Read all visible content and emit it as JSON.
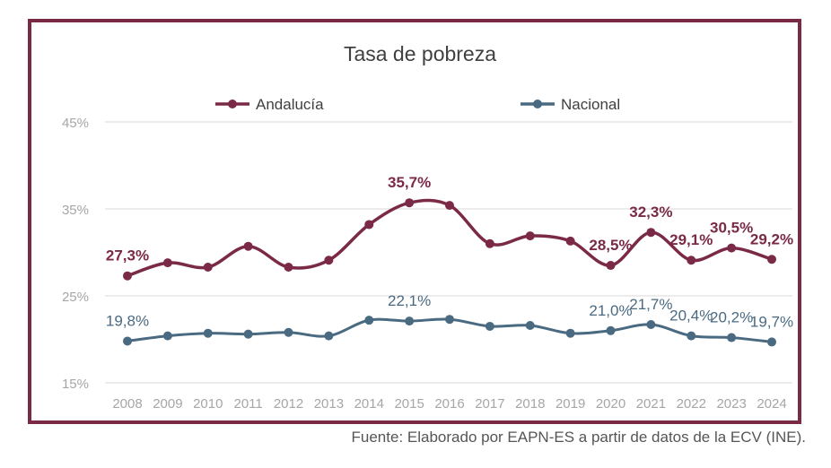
{
  "chart_data": {
    "type": "line",
    "title": "Tasa de pobreza",
    "xlabel": "",
    "ylabel": "",
    "categories": [
      "2008",
      "2009",
      "2010",
      "2011",
      "2012",
      "2013",
      "2014",
      "2015",
      "2016",
      "2017",
      "2018",
      "2019",
      "2020",
      "2021",
      "2022",
      "2023",
      "2024"
    ],
    "ylim": [
      15,
      45
    ],
    "yticks": [
      15,
      25,
      35,
      45
    ],
    "ytick_labels": [
      "15%",
      "25%",
      "35%",
      "45%"
    ],
    "grid": true,
    "legend_position": "top",
    "series": [
      {
        "name": "Andalucía",
        "color": "#7a2a47",
        "values": [
          27.3,
          28.8,
          28.3,
          30.7,
          28.3,
          29.1,
          33.2,
          35.7,
          35.4,
          31.0,
          31.9,
          31.3,
          28.5,
          32.3,
          29.1,
          30.5,
          29.2
        ],
        "labels": [
          {
            "index": 0,
            "text": "27,3%"
          },
          {
            "index": 7,
            "text": "35,7%"
          },
          {
            "index": 12,
            "text": "28,5%"
          },
          {
            "index": 13,
            "text": "32,3%"
          },
          {
            "index": 14,
            "text": "29,1%"
          },
          {
            "index": 15,
            "text": "30,5%"
          },
          {
            "index": 16,
            "text": "29,2%"
          }
        ]
      },
      {
        "name": "Nacional",
        "color": "#4a6a82",
        "values": [
          19.8,
          20.4,
          20.7,
          20.6,
          20.8,
          20.4,
          22.2,
          22.1,
          22.3,
          21.5,
          21.6,
          20.7,
          21.0,
          21.7,
          20.4,
          20.2,
          19.7
        ],
        "labels": [
          {
            "index": 0,
            "text": "19,8%"
          },
          {
            "index": 7,
            "text": "22,1%"
          },
          {
            "index": 12,
            "text": "21,0%"
          },
          {
            "index": 13,
            "text": "21,7%"
          },
          {
            "index": 14,
            "text": "20,4%"
          },
          {
            "index": 15,
            "text": "20,2%"
          },
          {
            "index": 16,
            "text": "19,7%"
          }
        ]
      }
    ]
  },
  "source": "Fuente: Elaborado por EAPN-ES a partir de datos de la ECV (INE)."
}
